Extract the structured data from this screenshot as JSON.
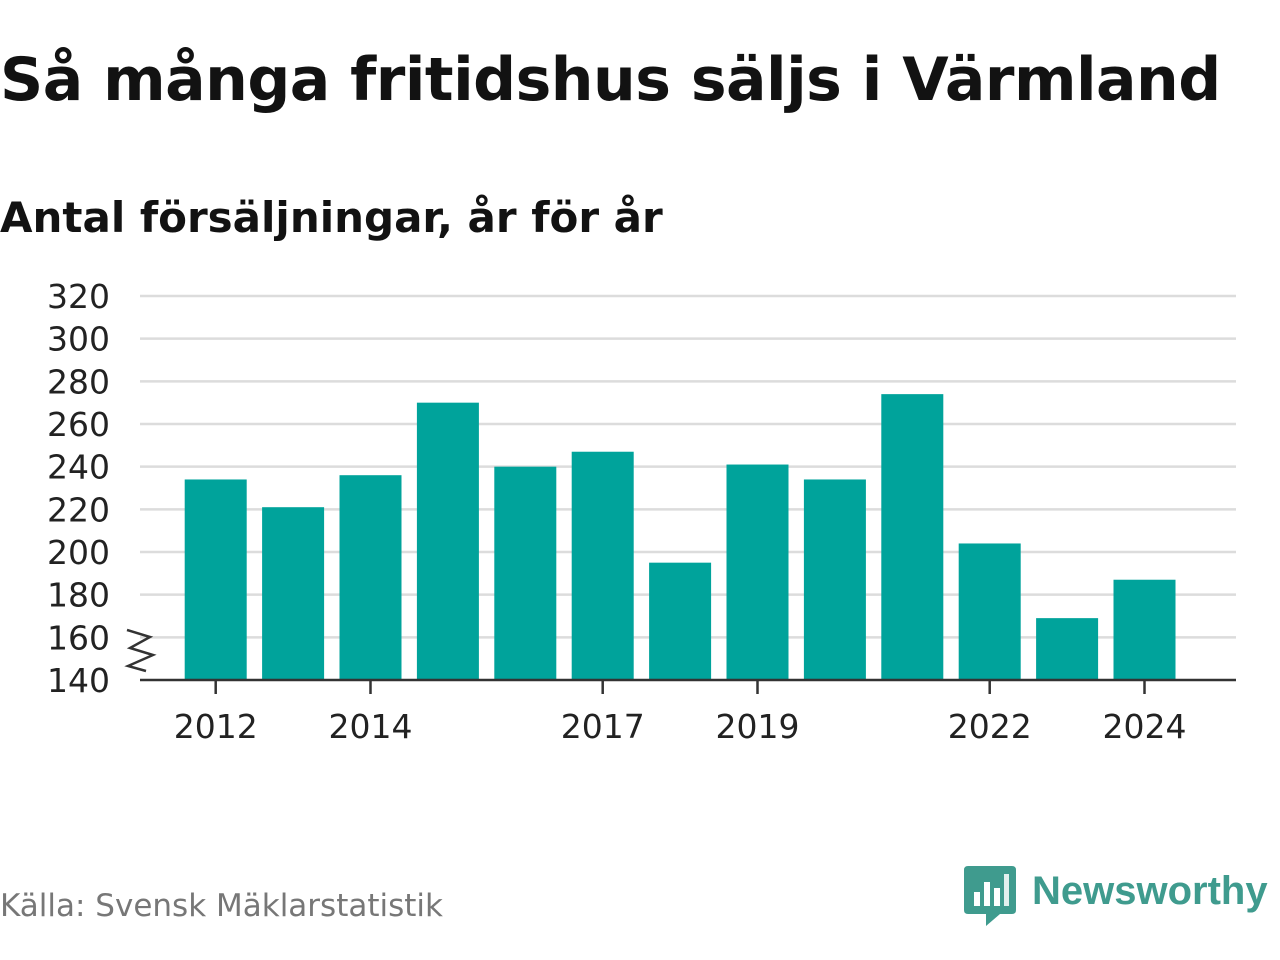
{
  "brand": {
    "name": "Newsworthy",
    "icon": "newsworthy-logo-icon",
    "color": "#3f9b8e"
  },
  "source": "Källa: Svensk Mäklarstatistik",
  "chart_data": {
    "type": "bar",
    "title": "Så många fritidshus säljs i Värmland",
    "subtitle": "Antal försäljningar, år för år",
    "xlabel": "",
    "ylabel": "",
    "categories": [
      "2012",
      "2013",
      "2014",
      "2015",
      "2016",
      "2017",
      "2018",
      "2019",
      "2020",
      "2021",
      "2022",
      "2023",
      "2024"
    ],
    "x_tick_labels": [
      "2012",
      "2014",
      "2017",
      "2019",
      "2022",
      "2024"
    ],
    "values": [
      234,
      221,
      236,
      270,
      240,
      247,
      195,
      241,
      234,
      274,
      204,
      169,
      187
    ],
    "ylim": [
      140,
      320
    ],
    "yticks": [
      140,
      160,
      180,
      200,
      220,
      240,
      260,
      280,
      300,
      320
    ],
    "grid": true,
    "axis_break": true,
    "bar_color": "#00a39b",
    "grid_color": "#dcdcdc",
    "axis_color": "#333333"
  }
}
